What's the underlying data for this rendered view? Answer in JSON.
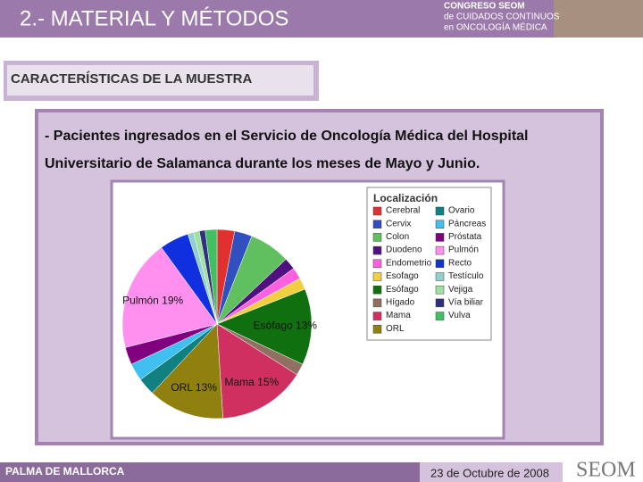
{
  "header": {
    "title": "2.- MATERIAL Y MÉTODOS",
    "logo": [
      "CONGRESO SEOM",
      "de CUIDADOS CONTINUOS",
      "en ONCOLOGÍA MÉDICA"
    ]
  },
  "section": "CARACTERÍSTICAS DE LA MUESTRA",
  "body": [
    "- Pacientes ingresados en el Servicio de Oncología Médica del Hospital",
    "Universitario de Salamanca durante los meses de Mayo y Junio."
  ],
  "chart_data": {
    "type": "pie",
    "legend_title": "Localización",
    "categories": [
      "Cerebral",
      "Cervix",
      "Colon",
      "Duodeno",
      "Endometrio",
      "Esofago",
      "Esófago",
      "Hígado",
      "Mama",
      "ORL",
      "Ovario",
      "Páncreas",
      "Próstata",
      "Pulmón",
      "Recto",
      "Testículo",
      "Vejiga",
      "Vía biliar",
      "Vulva"
    ],
    "values": [
      3,
      3,
      7,
      2,
      2,
      2,
      13,
      2,
      15,
      13,
      3,
      3,
      3,
      19,
      5,
      1,
      1,
      1,
      2
    ],
    "value_labels": [
      null,
      null,
      null,
      null,
      null,
      null,
      "Esófago 13%",
      null,
      "Mama 15%",
      "ORL 13%",
      null,
      null,
      null,
      "Pulmón 19%",
      null,
      null,
      null,
      null,
      null
    ],
    "colors": [
      "#e03030",
      "#3050c0",
      "#60c060",
      "#501080",
      "#ff60e0",
      "#f0d040",
      "#107010",
      "#907060",
      "#d03060",
      "#908010",
      "#108080",
      "#40c0f0",
      "#800080",
      "#ff90f0",
      "#1030e0",
      "#90d0d0",
      "#a0e0a0",
      "#303080",
      "#40c060"
    ]
  },
  "footer": {
    "location": "PALMA DE MALLORCA",
    "date": "23 de Octubre de 2008",
    "logo": "SEOM"
  }
}
